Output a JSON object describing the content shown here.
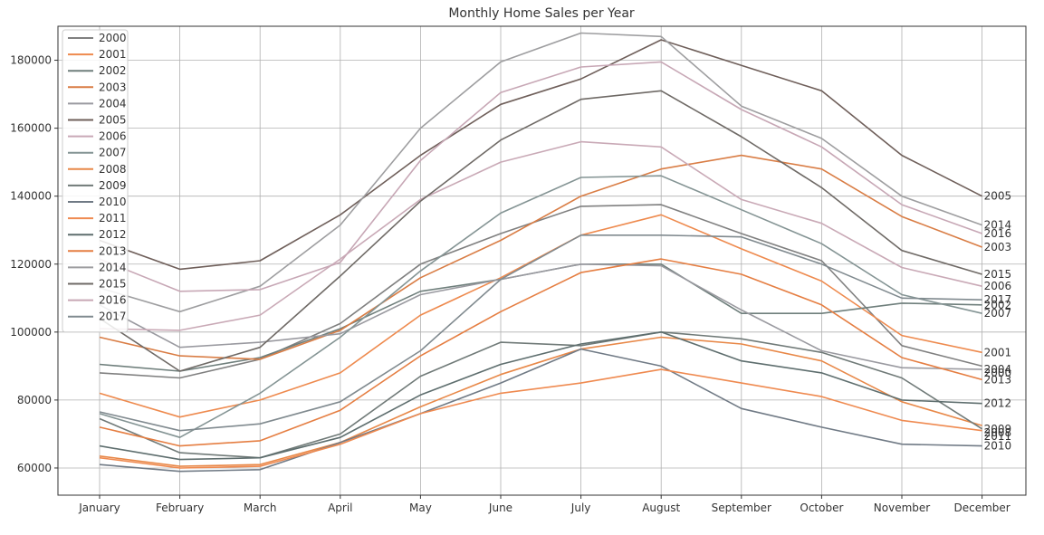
{
  "chart_data": {
    "type": "line",
    "title": "Monthly Home Sales per Year",
    "xlabel": "",
    "ylabel": "",
    "categories": [
      "January",
      "February",
      "March",
      "April",
      "May",
      "June",
      "July",
      "August",
      "September",
      "October",
      "November",
      "December"
    ],
    "yticks": [
      60000,
      80000,
      100000,
      120000,
      140000,
      160000,
      180000
    ],
    "ylim": [
      52000,
      190000
    ],
    "grid": true,
    "legend_position": "upper-left",
    "series": [
      {
        "name": "2000",
        "color": "#808080",
        "values": [
          88000,
          86500,
          92000,
          102500,
          120000,
          129000,
          137000,
          137500,
          129000,
          121000,
          96000,
          90000
        ]
      },
      {
        "name": "2001",
        "color": "#ee8a4e",
        "values": [
          82000,
          75000,
          80000,
          88000,
          105000,
          116000,
          128500,
          134500,
          124500,
          115000,
          99000,
          94000
        ]
      },
      {
        "name": "2002",
        "color": "#6f7f7c",
        "values": [
          90500,
          88500,
          92500,
          101000,
          112000,
          115500,
          120000,
          120000,
          105500,
          105500,
          108500,
          108000
        ]
      },
      {
        "name": "2003",
        "color": "#d97d45",
        "values": [
          98500,
          93000,
          92000,
          100500,
          116000,
          127000,
          140000,
          148000,
          152000,
          148000,
          134000,
          125000
        ]
      },
      {
        "name": "2004",
        "color": "#9a9aa0",
        "values": [
          108000,
          95500,
          97000,
          99500,
          111000,
          115500,
          120000,
          119500,
          106500,
          94500,
          89500,
          89000
        ]
      },
      {
        "name": "2005",
        "color": "#6f5f5a",
        "values": [
          127000,
          118500,
          121000,
          134500,
          152000,
          167000,
          174500,
          186000,
          178500,
          171000,
          152000,
          140000
        ]
      },
      {
        "name": "2006",
        "color": "#c9a9b6",
        "values": [
          101000,
          100500,
          105000,
          121500,
          139000,
          150000,
          156000,
          154500,
          139000,
          132000,
          119000,
          113500
        ]
      },
      {
        "name": "2007",
        "color": "#849494",
        "values": [
          76000,
          69000,
          82000,
          98500,
          118000,
          135000,
          145500,
          146000,
          136000,
          126000,
          111000,
          105500
        ]
      },
      {
        "name": "2008",
        "color": "#e88848",
        "values": [
          63500,
          60500,
          61000,
          67500,
          78000,
          87500,
          95000,
          98500,
          96500,
          91500,
          79500,
          72500
        ]
      },
      {
        "name": "2009",
        "color": "#707a78",
        "values": [
          74500,
          64500,
          63000,
          70000,
          87000,
          97000,
          96000,
          100000,
          98000,
          94000,
          86500,
          71500
        ]
      },
      {
        "name": "2010",
        "color": "#707a85",
        "values": [
          61000,
          59000,
          59500,
          67500,
          76000,
          85000,
          95000,
          90000,
          77500,
          72000,
          67000,
          66500
        ]
      },
      {
        "name": "2011",
        "color": "#ef8a50",
        "values": [
          63000,
          60000,
          60500,
          67000,
          76000,
          82000,
          85000,
          89000,
          85000,
          81000,
          74000,
          71000
        ]
      },
      {
        "name": "2012",
        "color": "#5e6e6e",
        "values": [
          66500,
          62500,
          63000,
          69000,
          81500,
          90500,
          96500,
          100000,
          91500,
          88000,
          80000,
          79000
        ]
      },
      {
        "name": "2013",
        "color": "#e57e42",
        "values": [
          72000,
          66500,
          68000,
          77000,
          93000,
          106000,
          117500,
          121500,
          117000,
          108000,
          92500,
          86000
        ]
      },
      {
        "name": "2014",
        "color": "#9e9ea0",
        "values": [
          113000,
          106000,
          113500,
          131500,
          160000,
          179500,
          188000,
          187000,
          166500,
          157000,
          140000,
          131500
        ]
      },
      {
        "name": "2015",
        "color": "#6f6a66",
        "values": [
          104000,
          88500,
          95500,
          116500,
          138500,
          156500,
          168500,
          171000,
          157500,
          142500,
          124000,
          117000
        ]
      },
      {
        "name": "2016",
        "color": "#c7a7b5",
        "values": [
          121500,
          112000,
          112500,
          120500,
          150500,
          170500,
          178000,
          179500,
          165500,
          154500,
          137500,
          129000
        ]
      },
      {
        "name": "2017",
        "color": "#808a8f",
        "values": [
          76500,
          71000,
          73000,
          79500,
          94500,
          115500,
          128500,
          128500,
          128000,
          120000,
          110000,
          109500
        ]
      }
    ],
    "end_labels_display_order": [
      "2005",
      "2004",
      "2017",
      "2016",
      "2003",
      "2015",
      "2006",
      "2002",
      "2014",
      "2001",
      "2000",
      "2009",
      "2013",
      "2012",
      "2008",
      "2007",
      "2011",
      "2010"
    ]
  }
}
